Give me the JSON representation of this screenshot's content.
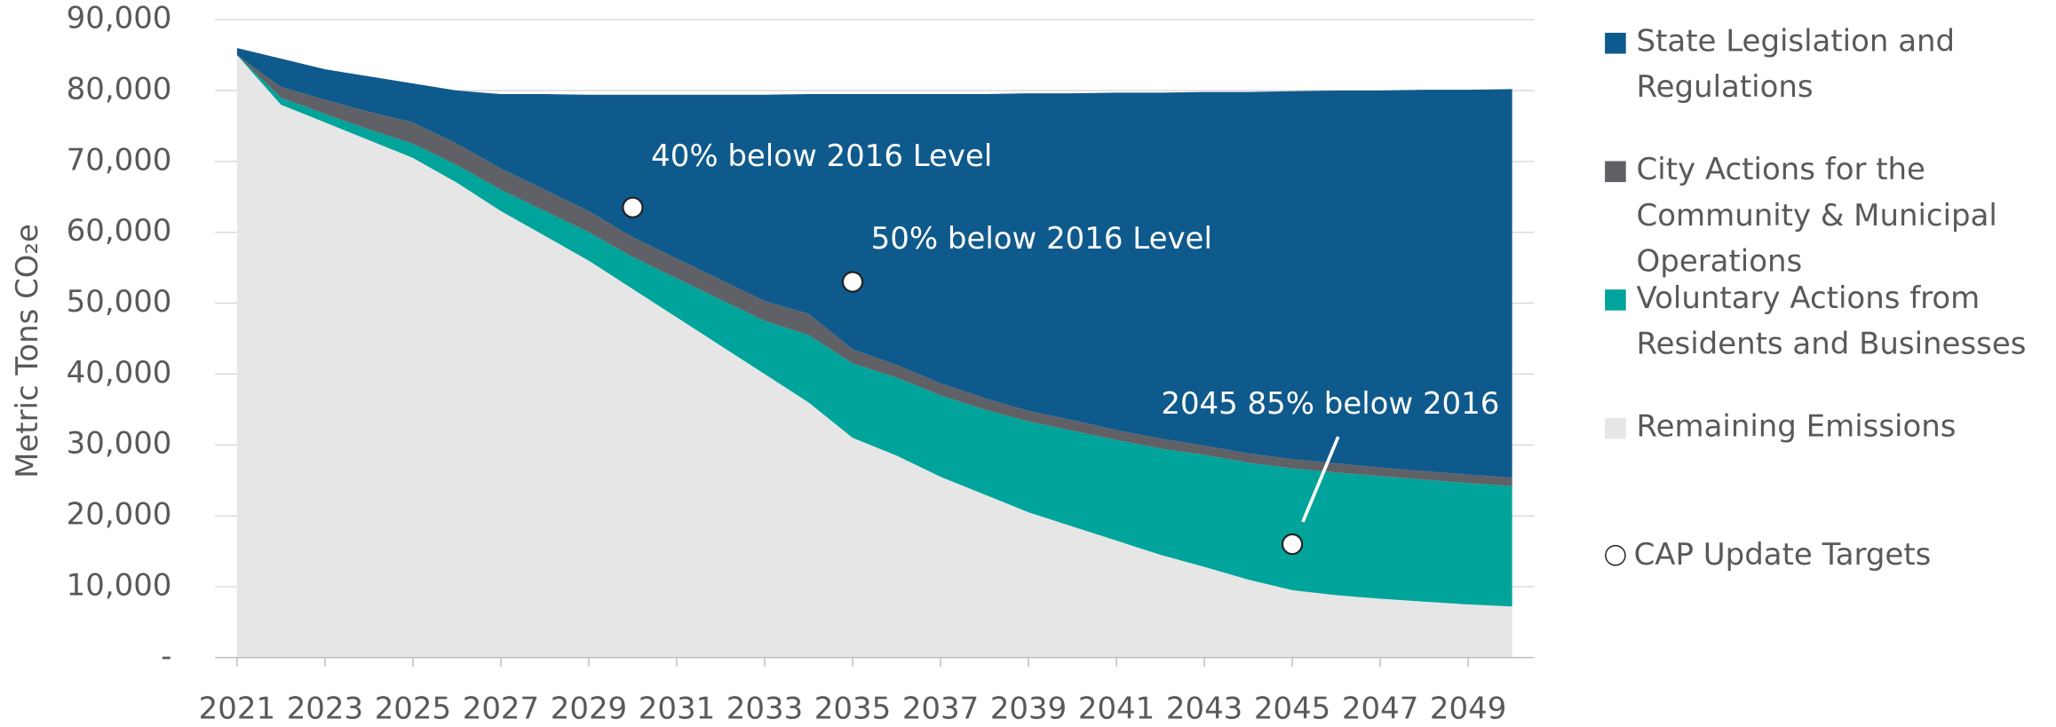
{
  "chart_data": {
    "type": "stacked_area",
    "y_label": "Metric Tons CO₂e",
    "x": [
      2021,
      2022,
      2023,
      2024,
      2025,
      2026,
      2027,
      2028,
      2029,
      2030,
      2031,
      2032,
      2033,
      2034,
      2035,
      2036,
      2037,
      2038,
      2039,
      2040,
      2041,
      2042,
      2043,
      2044,
      2045,
      2046,
      2047,
      2048,
      2049,
      2050
    ],
    "series": [
      {
        "name": "Remaining Emissions",
        "color": "#e6e6e6",
        "values": [
          85000,
          78000,
          75500,
          73000,
          70500,
          67000,
          63000,
          59500,
          56000,
          52000,
          48000,
          44000,
          40000,
          36000,
          31000,
          28500,
          25500,
          23000,
          20500,
          18500,
          16500,
          14500,
          12800,
          11000,
          9500,
          8800,
          8300,
          7900,
          7500,
          7200
        ]
      },
      {
        "name": "Voluntary Actions from Residents and Businesses",
        "color": "#00a49a",
        "values": [
          0,
          1000,
          1200,
          1500,
          2000,
          2500,
          3000,
          3500,
          4000,
          4500,
          5500,
          6500,
          7500,
          9500,
          10500,
          11000,
          11500,
          12000,
          12800,
          13500,
          14200,
          15000,
          15800,
          16500,
          17200,
          17300,
          17300,
          17200,
          17100,
          17000
        ]
      },
      {
        "name": "City Actions for the Community & Municipal Operations",
        "color": "#606166",
        "values": [
          0,
          1500,
          2000,
          2500,
          3000,
          3000,
          3000,
          3000,
          3000,
          2800,
          2800,
          2800,
          2800,
          3000,
          2000,
          1800,
          1700,
          1600,
          1500,
          1500,
          1400,
          1400,
          1300,
          1300,
          1300,
          1300,
          1200,
          1200,
          1200,
          1200
        ]
      },
      {
        "name": "State Legislation and Regulations",
        "color": "#0f5a8c",
        "values": [
          1000,
          4000,
          4300,
          5000,
          5500,
          7500,
          10500,
          13500,
          16400,
          20100,
          23100,
          26100,
          29100,
          31000,
          36000,
          38200,
          40800,
          42900,
          44800,
          46100,
          47600,
          48800,
          49900,
          51000,
          51900,
          52600,
          53200,
          53800,
          54300,
          54800
        ]
      }
    ],
    "targets": {
      "name": "CAP Update Targets",
      "x": [
        2030,
        2035,
        2045
      ],
      "values": [
        63500,
        53000,
        16000
      ],
      "labels": [
        "40% below 2016 Level",
        "50% below 2016 Level",
        "2045 85% below 2016"
      ]
    },
    "xlim": [
      2020.5,
      2050.5
    ],
    "xticks": [
      2021,
      2023,
      2025,
      2027,
      2029,
      2031,
      2033,
      2035,
      2037,
      2039,
      2041,
      2043,
      2045,
      2047,
      2049
    ],
    "ylim": [
      0,
      90000
    ],
    "yticks": [
      {
        "value": 0,
        "label": "-"
      },
      {
        "value": 10000,
        "label": "10,000"
      },
      {
        "value": 20000,
        "label": "20,000"
      },
      {
        "value": 30000,
        "label": "30,000"
      },
      {
        "value": 40000,
        "label": "40,000"
      },
      {
        "value": 50000,
        "label": "50,000"
      },
      {
        "value": 60000,
        "label": "60,000"
      },
      {
        "value": 70000,
        "label": "70,000"
      },
      {
        "value": 80000,
        "label": "80,000"
      },
      {
        "value": 90000,
        "label": "90,000"
      }
    ],
    "grid": true,
    "legend": "right"
  }
}
